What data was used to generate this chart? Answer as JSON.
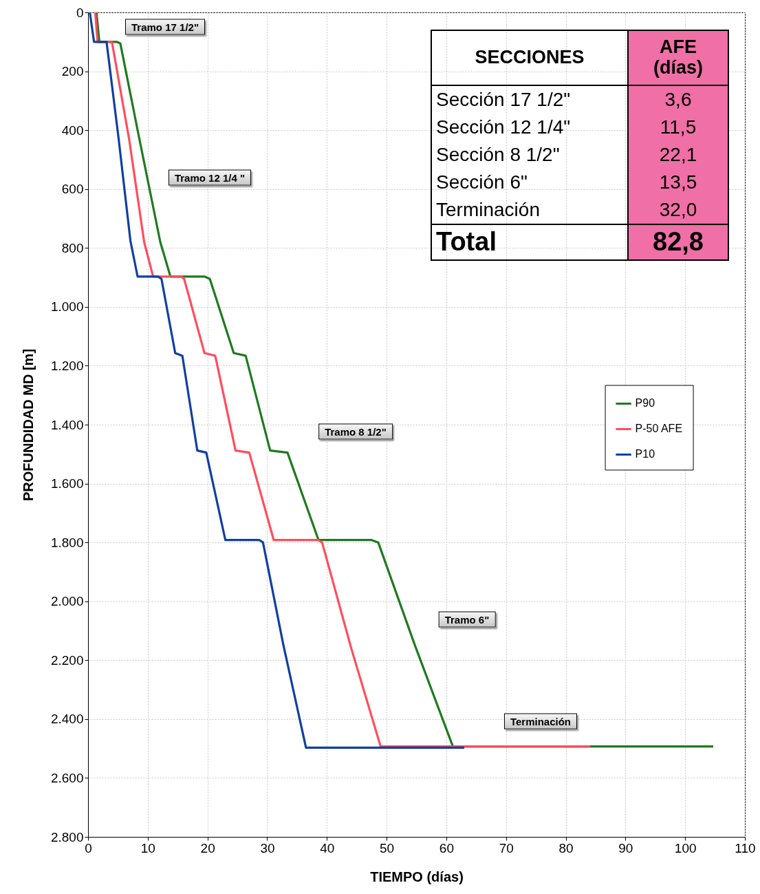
{
  "chart_data": {
    "type": "line",
    "xlabel": "TIEMPO (días)",
    "ylabel": "PROFUNDIDAD MD [m]",
    "xlim": [
      0,
      110
    ],
    "xticks": [
      0,
      10,
      20,
      30,
      40,
      50,
      60,
      70,
      80,
      90,
      100,
      110
    ],
    "ylim": [
      2800,
      0
    ],
    "yticks": [
      0,
      200,
      400,
      600,
      800,
      {
        "value": 1000,
        "label": "1.000"
      },
      {
        "value": 1200,
        "label": "1.200"
      },
      {
        "value": 1400,
        "label": "1.400"
      },
      {
        "value": 1600,
        "label": "1.600"
      },
      {
        "value": 1800,
        "label": "1.800"
      },
      {
        "value": 2000,
        "label": "2.000"
      },
      {
        "value": 2200,
        "label": "2.200"
      },
      {
        "value": 2400,
        "label": "2.400"
      },
      {
        "value": 2600,
        "label": "2.600"
      },
      {
        "value": 2800,
        "label": "2.800"
      }
    ],
    "grid": true,
    "legend": "right",
    "line_style": "solid",
    "marker": "none",
    "series": [
      {
        "name": "P90",
        "color": "#1f7a1f",
        "x": [
          1.4,
          1.9,
          4.8,
          5.4,
          8.6,
          12.1,
          13.8,
          19.5,
          20.4,
          24.4,
          26.4,
          30.5,
          33.4,
          38.6,
          47.5,
          48.6,
          54.7,
          61.1,
          104.7
        ],
        "values": [
          0,
          100,
          100,
          105,
          430,
          780,
          897,
          897,
          905,
          1157,
          1166,
          1488,
          1495,
          1792,
          1792,
          1800,
          2147,
          2493,
          2493
        ]
      },
      {
        "name": "P-50 AFE",
        "color": "#ff4d5e",
        "x": [
          1.2,
          1.6,
          4.0,
          6.9,
          9.4,
          10.9,
          15.6,
          16.1,
          19.5,
          21.3,
          24.7,
          27.0,
          31.1,
          38.5,
          39.2,
          44.0,
          49.0,
          84.1
        ],
        "values": [
          0,
          100,
          100,
          433,
          780,
          897,
          897,
          905,
          1157,
          1166,
          1488,
          1495,
          1792,
          1792,
          1800,
          2154,
          2493,
          2493
        ]
      },
      {
        "name": "P10",
        "color": "#1040a0",
        "x": [
          0.3,
          1.0,
          3.1,
          5.1,
          7.1,
          8.3,
          11.7,
          12.3,
          14.6,
          15.8,
          18.3,
          19.8,
          23.0,
          28.7,
          29.3,
          32.7,
          36.5,
          63.0
        ],
        "values": [
          0,
          100,
          100,
          425,
          776,
          897,
          897,
          905,
          1157,
          1166,
          1488,
          1495,
          1792,
          1792,
          1800,
          2147,
          2497,
          2497
        ]
      }
    ],
    "annotations": [
      "Tramo 17 1/2\"",
      "Tramo 12 1/4 \"",
      "Tramo 8 1/2\"",
      "Tramo 6\"",
      "Terminación",
      "SECCIONES",
      "AFE (días)",
      "Sección 17 1/2\"",
      "3,6",
      "Sección 12 1/4\"",
      "11,5",
      "Sección 8 1/2\"",
      "22,1",
      "Sección 6\"",
      "13,5",
      "Terminación",
      "32,0",
      "Total",
      "82,8"
    ]
  }
}
